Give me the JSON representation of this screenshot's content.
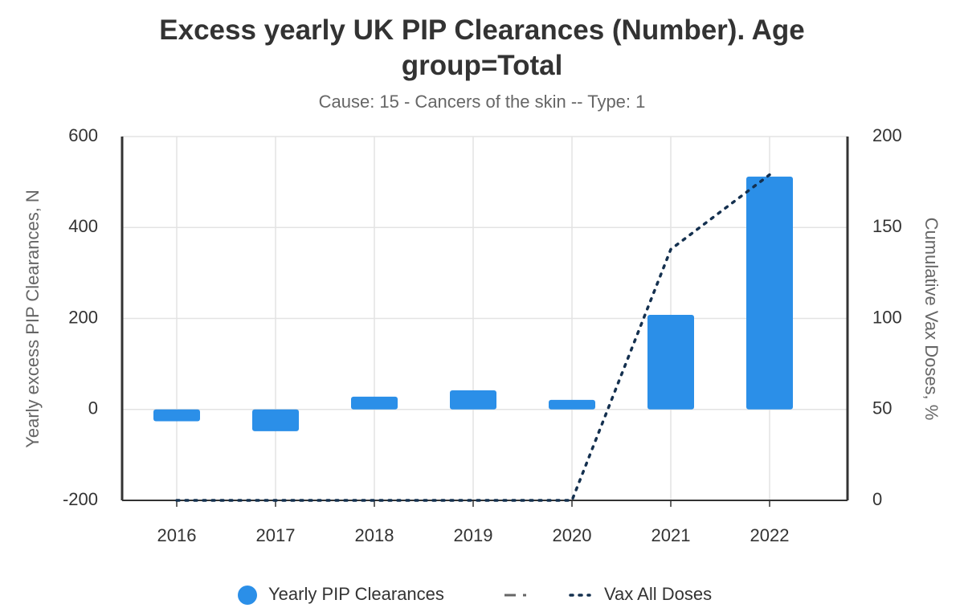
{
  "chart_data": {
    "type": "bar",
    "title": "Excess yearly UK PIP Clearances (Number). Age group=Total",
    "subtitle": "Cause: 15 - Cancers of the skin -- Type: 1",
    "y_label": "Yearly excess PIP Clearances, N",
    "y2_label": "Cumulative Vax Doses, %",
    "categories": [
      "2016",
      "2017",
      "2018",
      "2019",
      "2020",
      "2021",
      "2022"
    ],
    "series": [
      {
        "name": "Yearly PIP Clearances",
        "type": "bar",
        "color": "#2b8fe8",
        "values": [
          -26,
          -48,
          28,
          42,
          21,
          208,
          512
        ]
      },
      {
        "name": "Vax All Doses",
        "type": "line",
        "axis": "y2",
        "color": "#14304f",
        "values": [
          0,
          0,
          0,
          0,
          0,
          138,
          179
        ]
      }
    ],
    "ylim": [
      -200,
      600
    ],
    "yticks": [
      -200,
      0,
      200,
      400,
      600
    ],
    "y2lim": [
      0,
      200
    ],
    "y2ticks": [
      0,
      50,
      100,
      150,
      200
    ],
    "grid": true
  }
}
